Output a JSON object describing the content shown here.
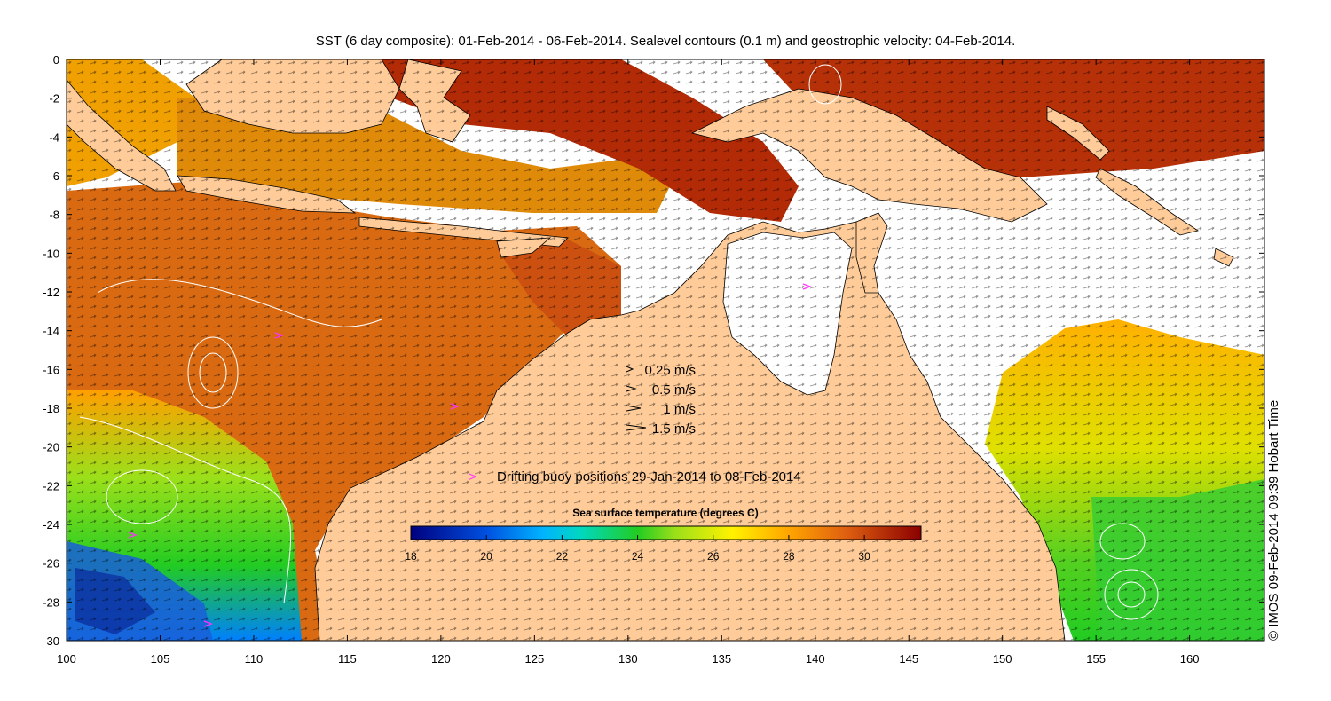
{
  "title": "SST (6 day composite): 01-Feb-2014 - 06-Feb-2014. Sealevel contours (0.1 m) and geostrophic velocity: 04-Feb-2014.",
  "credit": "© IMOS 09-Feb-2014 09:39 Hobart Time",
  "colors": {
    "land": "#ffcc99",
    "no_data": "#ffffff",
    "buoy": "#ff33ff",
    "coast": "#000000"
  },
  "axes": {
    "x": {
      "min": 100,
      "max": 164,
      "ticks": [
        "100",
        "105",
        "110",
        "115",
        "120",
        "125",
        "130",
        "135",
        "140",
        "145",
        "150",
        "155",
        "160"
      ]
    },
    "y": {
      "min": -30,
      "max": 0,
      "ticks": [
        "0",
        "-2",
        "-4",
        "-6",
        "-8",
        "-10",
        "-12",
        "-14",
        "-16",
        "-18",
        "-20",
        "-22",
        "-24",
        "-26",
        "-28",
        "-30"
      ]
    }
  },
  "velocity_legend": [
    {
      "label": "0.25 m/s",
      "speed": 0.25
    },
    {
      "label": "0.5 m/s",
      "speed": 0.5
    },
    {
      "label": "1 m/s",
      "speed": 1
    },
    {
      "label": "1.5 m/s",
      "speed": 1.5
    }
  ],
  "buoy_legend": {
    "symbol": ">",
    "label": "Drifting buoy positions 29-Jan-2014 to 08-Feb-2014"
  },
  "colorbar": {
    "title": "Sea surface temperature (degrees C)",
    "min": 18,
    "max": 31.5,
    "ticks": [
      "18",
      "20",
      "22",
      "24",
      "26",
      "28",
      "30"
    ],
    "stops": [
      {
        "value": 18,
        "color": "#00007f"
      },
      {
        "value": 20,
        "color": "#0050e0"
      },
      {
        "value": 21.5,
        "color": "#00b4ff"
      },
      {
        "value": 22.5,
        "color": "#00d8c0"
      },
      {
        "value": 24,
        "color": "#22cc22"
      },
      {
        "value": 25,
        "color": "#9be01a"
      },
      {
        "value": 26.5,
        "color": "#fff200"
      },
      {
        "value": 28,
        "color": "#ffa500"
      },
      {
        "value": 29.5,
        "color": "#e06010"
      },
      {
        "value": 31.5,
        "color": "#8b0000"
      }
    ]
  }
}
